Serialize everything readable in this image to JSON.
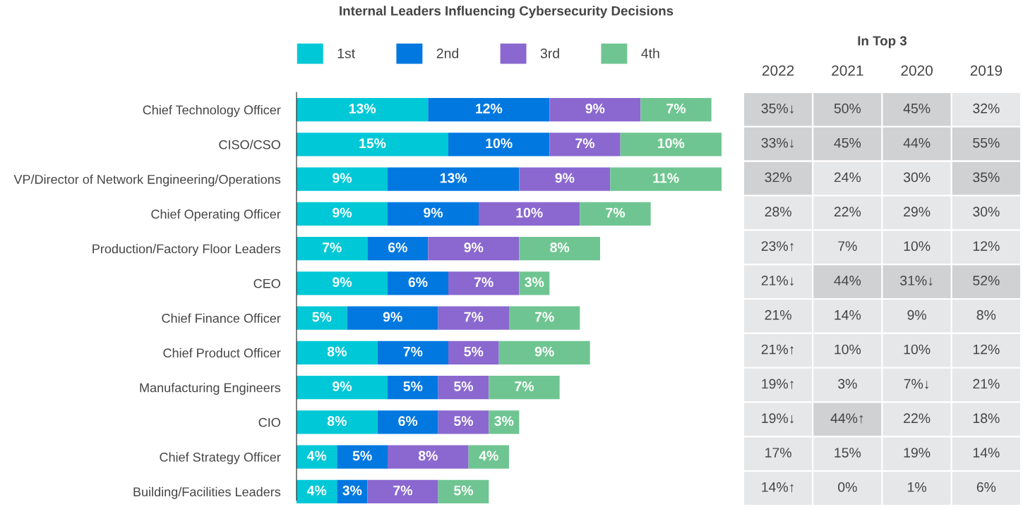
{
  "chart_data": [
    {
      "type": "bar",
      "title": "Internal Leaders Influencing Cybersecurity Decisions",
      "orientation": "horizontal",
      "stacked": true,
      "legend": "top",
      "grid": false,
      "tick_labels": "y",
      "categories": [
        "Chief Technology Officer",
        "CISO/CSO",
        "VP/Director of Network Engineering/Operations",
        "Chief Operating Officer",
        "Production/Factory Floor Leaders",
        "CEO",
        "Chief Finance Officer",
        "Chief Product Officer",
        "Manufacturing Engineers",
        "CIO",
        "Chief Strategy Officer",
        "Building/Facilities Leaders"
      ],
      "series": [
        {
          "name": "1st",
          "color": "#00c8d7",
          "values": [
            13,
            15,
            9,
            9,
            7,
            9,
            5,
            8,
            9,
            8,
            4,
            4
          ],
          "value_labels": [
            "13%",
            "15%",
            "9%",
            "9%",
            "7%",
            "9%",
            "5%",
            "8%",
            "9%",
            "8%",
            "4%",
            "4%"
          ]
        },
        {
          "name": "2nd",
          "color": "#0078e0",
          "values": [
            12,
            10,
            13,
            9,
            6,
            6,
            9,
            7,
            5,
            6,
            5,
            3
          ],
          "value_labels": [
            "12%",
            "10%",
            "13%",
            "9%",
            "6%",
            "6%",
            "9%",
            "7%",
            "5%",
            "6%",
            "5%",
            "3%"
          ]
        },
        {
          "name": "3rd",
          "color": "#8a68cf",
          "values": [
            9,
            7,
            9,
            10,
            9,
            7,
            7,
            5,
            5,
            5,
            8,
            7
          ],
          "value_labels": [
            "9%",
            "7%",
            "9%",
            "10%",
            "9%",
            "7%",
            "7%",
            "5%",
            "5%",
            "5%",
            "8%",
            "7%"
          ]
        },
        {
          "name": "4th",
          "color": "#6fc591",
          "values": [
            7,
            10,
            11,
            7,
            8,
            3,
            7,
            9,
            7,
            3,
            4,
            5
          ],
          "value_labels": [
            "7%",
            "10%",
            "11%",
            "7%",
            "8%",
            "3%",
            "7%",
            "9%",
            "7%",
            "3%",
            "4%",
            "5%"
          ]
        }
      ]
    },
    {
      "type": "heatmap",
      "title": "In Top 3",
      "tick_labels": "x",
      "categories": [
        "2022",
        "2021",
        "2020",
        "2019"
      ],
      "y_categories": [
        null,
        null,
        null,
        null,
        null,
        null,
        null,
        null,
        null,
        null,
        null,
        null
      ],
      "cells": [
        [
          35,
          50,
          45,
          32
        ],
        [
          33,
          45,
          44,
          55
        ],
        [
          32,
          24,
          30,
          35
        ],
        [
          28,
          22,
          29,
          30
        ],
        [
          23,
          7,
          10,
          12
        ],
        [
          21,
          44,
          31,
          52
        ],
        [
          21,
          14,
          9,
          8
        ],
        [
          21,
          10,
          10,
          12
        ],
        [
          19,
          3,
          7,
          21
        ],
        [
          19,
          44,
          22,
          18
        ],
        [
          17,
          15,
          19,
          14
        ],
        [
          14,
          0,
          1,
          6
        ]
      ],
      "cell_labels": [
        [
          "35%↓",
          "50%",
          "45%",
          "32%"
        ],
        [
          "33%↓",
          "45%",
          "44%",
          "55%"
        ],
        [
          "32%",
          "24%",
          "30%",
          "35%"
        ],
        [
          "28%",
          "22%",
          "29%",
          "30%"
        ],
        [
          "23%↑",
          "7%",
          "10%",
          "12%"
        ],
        [
          "21%↓",
          "44%",
          "31%↓",
          "52%"
        ],
        [
          "21%",
          "14%",
          "9%",
          "8%"
        ],
        [
          "21%↑",
          "10%",
          "10%",
          "12%"
        ],
        [
          "19%↑",
          "3%",
          "7%↓",
          "21%"
        ],
        [
          "19%↓",
          "44%↑",
          "22%",
          "18%"
        ],
        [
          "17%",
          "15%",
          "19%",
          "14%"
        ],
        [
          "14%↑",
          "0%",
          "1%",
          "6%"
        ]
      ]
    }
  ]
}
